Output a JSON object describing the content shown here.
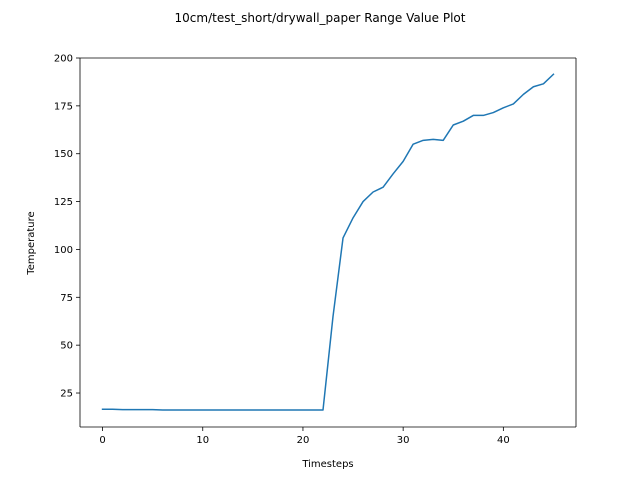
{
  "chart_data": {
    "type": "line",
    "title": "10cm/test_short/drywall_paper Range Value Plot",
    "xlabel": "Timesteps",
    "ylabel": "Temperature",
    "xlim": [
      -2.25,
      47.25
    ],
    "ylim": [
      7.25,
      200.0
    ],
    "xticks": [
      0,
      10,
      20,
      30,
      40
    ],
    "yticks": [
      25,
      50,
      75,
      100,
      125,
      150,
      175,
      200
    ],
    "grid": false,
    "line_color": "#1f77b4",
    "series": [
      {
        "x": [
          0,
          1,
          2,
          3,
          4,
          5,
          6,
          7,
          8,
          9,
          10,
          11,
          12,
          13,
          14,
          15,
          16,
          17,
          18,
          19,
          20,
          21,
          22,
          23,
          24,
          25,
          26,
          27,
          28,
          29,
          30,
          31,
          32,
          33,
          34,
          35,
          36,
          37,
          38,
          39,
          40,
          41,
          42,
          43,
          44,
          45
        ],
        "values": [
          16.5,
          16.5,
          16.3,
          16.3,
          16.3,
          16.3,
          16.1,
          16.1,
          16.1,
          16.1,
          16.1,
          16.1,
          16.1,
          16.1,
          16.1,
          16.1,
          16.1,
          16.1,
          16.1,
          16.1,
          16.1,
          16.1,
          16.1,
          65.0,
          106.0,
          116.5,
          125.0,
          130.0,
          132.5,
          139.5,
          146.0,
          155.0,
          157.0,
          157.5,
          157.0,
          165.0,
          167.0,
          170.0,
          170.0,
          171.5,
          174.0,
          176.0,
          181.0,
          185.0,
          186.5,
          191.5
        ]
      }
    ]
  }
}
